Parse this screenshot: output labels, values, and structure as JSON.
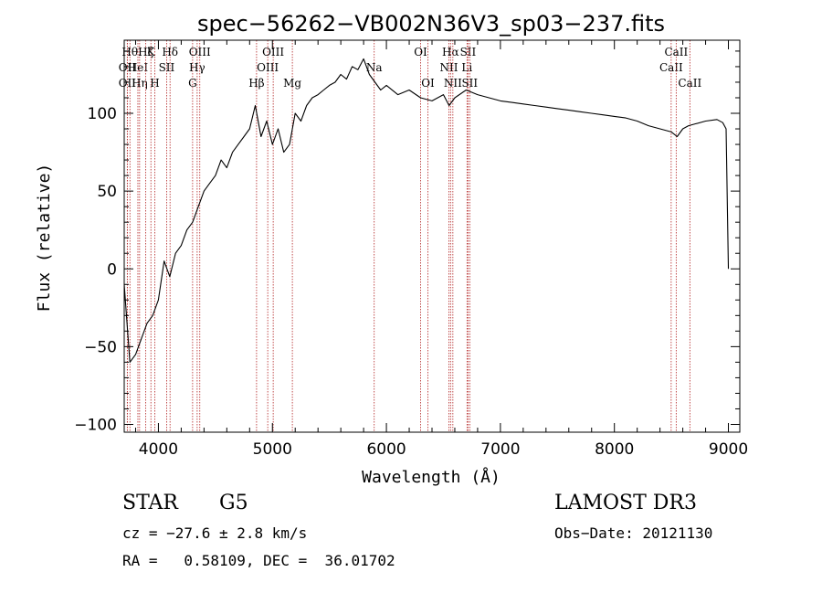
{
  "chart_data": {
    "type": "line",
    "title": "spec−56262−VB002N36V3_sp03−237.fits",
    "xlabel": "Wavelength (Å)",
    "ylabel": "Flux (relative)",
    "xlim": [
      3700,
      9100
    ],
    "ylim": [
      -105,
      147
    ],
    "xticks": [
      4000,
      5000,
      6000,
      7000,
      8000,
      9000
    ],
    "xtick_labels": [
      "4000",
      "5000",
      "6000",
      "7000",
      "8000",
      "9000"
    ],
    "yticks": [
      -100,
      -50,
      0,
      50,
      100
    ],
    "ytick_labels": [
      "−100",
      "−50",
      "0",
      "50",
      "100"
    ],
    "series": [
      {
        "name": "flux",
        "x": [
          3700,
          3750,
          3800,
          3850,
          3900,
          3950,
          4000,
          4050,
          4100,
          4150,
          4200,
          4250,
          4300,
          4350,
          4400,
          4450,
          4500,
          4550,
          4600,
          4650,
          4700,
          4750,
          4800,
          4850,
          4900,
          4950,
          5000,
          5050,
          5100,
          5150,
          5200,
          5250,
          5300,
          5350,
          5400,
          5450,
          5500,
          5550,
          5600,
          5650,
          5700,
          5750,
          5800,
          5850,
          5900,
          5950,
          6000,
          6100,
          6200,
          6300,
          6400,
          6500,
          6550,
          6600,
          6700,
          6800,
          6900,
          7000,
          7100,
          7200,
          7300,
          7400,
          7500,
          7600,
          7700,
          7800,
          7900,
          8000,
          8100,
          8200,
          8300,
          8400,
          8500,
          8550,
          8600,
          8650,
          8700,
          8800,
          8900,
          8950,
          8980,
          9000
        ],
        "y": [
          -10,
          -60,
          -55,
          -45,
          -35,
          -30,
          -20,
          5,
          -5,
          10,
          15,
          25,
          30,
          40,
          50,
          55,
          60,
          70,
          65,
          75,
          80,
          85,
          90,
          105,
          85,
          95,
          80,
          90,
          75,
          80,
          100,
          95,
          105,
          110,
          112,
          115,
          118,
          120,
          125,
          122,
          130,
          128,
          135,
          125,
          120,
          115,
          118,
          112,
          115,
          110,
          108,
          112,
          105,
          110,
          115,
          112,
          110,
          108,
          107,
          106,
          105,
          104,
          103,
          102,
          101,
          100,
          99,
          98,
          97,
          95,
          92,
          90,
          88,
          85,
          90,
          92,
          93,
          95,
          96,
          94,
          90,
          0
        ]
      }
    ],
    "spectral_lines": [
      {
        "wavelength": 3750,
        "label": "Hθ",
        "row": 1
      },
      {
        "wavelength": 3727,
        "label": "OII",
        "row": 2
      },
      {
        "wavelength": 3727,
        "label": "OII",
        "row": 3
      },
      {
        "wavelength": 3820,
        "label": "HeI",
        "row": 2
      },
      {
        "wavelength": 3835,
        "label": "Hη",
        "row": 3
      },
      {
        "wavelength": 3889,
        "label": "Hζ",
        "row": 1
      },
      {
        "wavelength": 3934,
        "label": "K",
        "row": 1
      },
      {
        "wavelength": 3968,
        "label": "H",
        "row": 3
      },
      {
        "wavelength": 4072,
        "label": "SII",
        "row": 2
      },
      {
        "wavelength": 4102,
        "label": "Hδ",
        "row": 1
      },
      {
        "wavelength": 4300,
        "label": "G",
        "row": 3
      },
      {
        "wavelength": 4340,
        "label": "Hγ",
        "row": 2
      },
      {
        "wavelength": 4363,
        "label": "OIII",
        "row": 1
      },
      {
        "wavelength": 4861,
        "label": "Hβ",
        "row": 3
      },
      {
        "wavelength": 4959,
        "label": "OIII",
        "row": 2
      },
      {
        "wavelength": 5007,
        "label": "OIII",
        "row": 1
      },
      {
        "wavelength": 5175,
        "label": "Mg",
        "row": 3
      },
      {
        "wavelength": 5893,
        "label": "Na",
        "row": 2
      },
      {
        "wavelength": 6300,
        "label": "OI",
        "row": 1
      },
      {
        "wavelength": 6364,
        "label": "OI",
        "row": 3
      },
      {
        "wavelength": 6548,
        "label": "NII",
        "row": 2
      },
      {
        "wavelength": 6563,
        "label": "Hα",
        "row": 1
      },
      {
        "wavelength": 6583,
        "label": "NII",
        "row": 3
      },
      {
        "wavelength": 6707,
        "label": "Li",
        "row": 2
      },
      {
        "wavelength": 6716,
        "label": "SII",
        "row": 1
      },
      {
        "wavelength": 6731,
        "label": "SII",
        "row": 3
      },
      {
        "wavelength": 8498,
        "label": "CaII",
        "row": 2
      },
      {
        "wavelength": 8542,
        "label": "CaII",
        "row": 1
      },
      {
        "wavelength": 8662,
        "label": "CaII",
        "row": 3
      }
    ],
    "grid": false,
    "legend": "none"
  },
  "info": {
    "object_class": "STAR",
    "subclass": "G5",
    "survey": "LAMOST DR3",
    "cz_line": "cz = −27.6 ± 2.8 km/s",
    "obs_date_line": "Obs−Date: 20121130",
    "coords_line": "RA =   0.58109, DEC =  36.01702"
  },
  "colors": {
    "line": "#000000",
    "spectral_line": "#b22222"
  }
}
